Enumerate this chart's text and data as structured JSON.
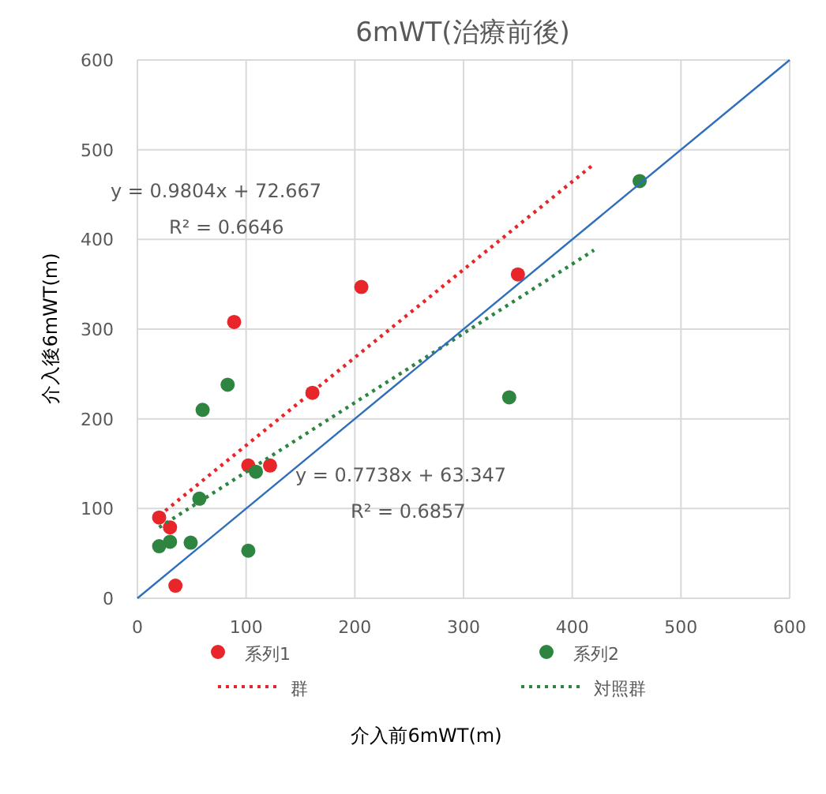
{
  "chart_data": {
    "type": "scatter",
    "title": "6mWT(治療前後)",
    "xlabel": "介入前6mWT(m)",
    "ylabel": "介入後6mWT(m)",
    "xlim": [
      0,
      600
    ],
    "ylim": [
      0,
      600
    ],
    "xticks": [
      0,
      100,
      200,
      300,
      400,
      500,
      600
    ],
    "yticks": [
      0,
      100,
      200,
      300,
      400,
      500,
      600
    ],
    "grid": true,
    "legend": "bottom",
    "series": [
      {
        "name": "系列1",
        "marker": "circle",
        "color": "#e8262a",
        "x": [
          20,
          30,
          35,
          89,
          102,
          122,
          161,
          206,
          350
        ],
        "values": [
          90,
          79,
          14,
          308,
          148,
          148,
          229,
          347,
          361
        ]
      },
      {
        "name": "系列2",
        "marker": "circle",
        "color": "#2e8540",
        "x": [
          20,
          30,
          49,
          57,
          60,
          83,
          102,
          109,
          342,
          462
        ],
        "values": [
          58,
          63,
          62,
          111,
          210,
          238,
          53,
          141,
          224,
          465
        ]
      },
      {
        "name": "群",
        "type": "line",
        "line_style": "dotted",
        "color": "#e8262a",
        "x": [
          20,
          420
        ],
        "values": [
          92,
          484
        ]
      },
      {
        "name": "対照群",
        "type": "line",
        "line_style": "dotted",
        "color": "#2e8540",
        "x": [
          20,
          420
        ],
        "values": [
          79,
          388
        ]
      },
      {
        "type": "line",
        "line_style": "solid",
        "color": "#2f6eba",
        "x": [
          0,
          600
        ],
        "values": [
          0,
          600
        ]
      }
    ],
    "annotations": [
      "y = 0.9804x + 72.667",
      "R² = 0.6646",
      "y = 0.7738x + 63.347",
      "R² = 0.6857"
    ]
  }
}
